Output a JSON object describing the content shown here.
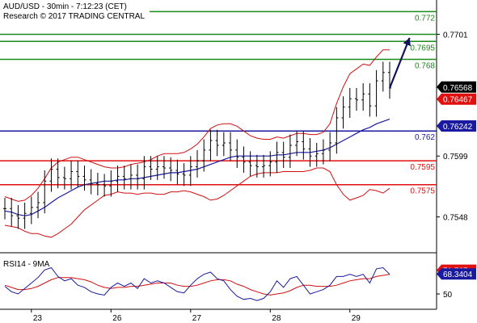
{
  "chart_data": {
    "type": "line",
    "header": {
      "line1": "AUD/USD - 30min - 7:12:23 (CET)",
      "line2": "Research © 2017 TRADING CENTRAL"
    },
    "price_ylim": [
      0.7518,
      0.7727
    ],
    "price_axis_ticks": [
      "0.7701",
      "0.7599",
      "0.7548"
    ],
    "price_axis_tick_values": [
      0.7701,
      0.7599,
      0.7548
    ],
    "levels": [
      {
        "value": 0.772,
        "label": "0.772",
        "color": "#1a8a1a"
      },
      {
        "value": 0.7701,
        "label": "",
        "color": "#1a8a1a"
      },
      {
        "value": 0.7695,
        "label": "0.7695",
        "color": "#1a8a1a"
      },
      {
        "value": 0.768,
        "label": "0.768",
        "color": "#1a8a1a"
      },
      {
        "value": 0.762,
        "label": "0.762",
        "color": "#1a1aa0"
      },
      {
        "value": 0.7595,
        "label": "0.7595",
        "color": "#e01010"
      },
      {
        "value": 0.7575,
        "label": "0.7575",
        "color": "#e01010"
      }
    ],
    "price_badges": [
      {
        "value": 0.76568,
        "label": "0.76568",
        "bg": "#000000",
        "fg": "#ffffff"
      },
      {
        "value": 0.76467,
        "label": "0.76467",
        "bg": "#e01010",
        "fg": "#ffffff"
      },
      {
        "value": 0.76242,
        "label": "0.76242",
        "bg": "#1a1aa0",
        "fg": "#ffffff"
      }
    ],
    "x_ticks": [
      "23",
      "26",
      "27",
      "28",
      "29"
    ],
    "x_tick_index": [
      4,
      16,
      28,
      40,
      52
    ],
    "bars_count": 59,
    "price_series": [
      0.7555,
      0.7549,
      0.7547,
      0.7551,
      0.7556,
      0.756,
      0.7578,
      0.7588,
      0.7581,
      0.758,
      0.7586,
      0.7582,
      0.7579,
      0.7576,
      0.7575,
      0.7574,
      0.7578,
      0.7582,
      0.758,
      0.7583,
      0.758,
      0.759,
      0.7588,
      0.759,
      0.7589,
      0.7587,
      0.7584,
      0.7583,
      0.759,
      0.7595,
      0.7604,
      0.7612,
      0.7608,
      0.761,
      0.7604,
      0.7598,
      0.7594,
      0.7591,
      0.759,
      0.7591,
      0.7594,
      0.7602,
      0.7598,
      0.7608,
      0.7611,
      0.7605,
      0.7599,
      0.7601,
      0.7604,
      0.761,
      0.7631,
      0.764,
      0.7647,
      0.7646,
      0.7651,
      0.7641,
      0.7662,
      0.7669,
      0.7656
    ],
    "sma_series": [
      0.7553,
      0.7552,
      0.755,
      0.7549,
      0.755,
      0.7553,
      0.7556,
      0.756,
      0.7564,
      0.7567,
      0.757,
      0.7573,
      0.7575,
      0.7576,
      0.7577,
      0.7578,
      0.7578,
      0.7579,
      0.7579,
      0.758,
      0.758,
      0.7581,
      0.7582,
      0.7583,
      0.7584,
      0.7585,
      0.7585,
      0.7586,
      0.7587,
      0.7588,
      0.759,
      0.7592,
      0.7594,
      0.7596,
      0.7598,
      0.7599,
      0.7599,
      0.7599,
      0.7599,
      0.7599,
      0.7599,
      0.76,
      0.76,
      0.7601,
      0.7602,
      0.7602,
      0.7602,
      0.7603,
      0.7604,
      0.7606,
      0.7609,
      0.7612,
      0.7615,
      0.7618,
      0.7621,
      0.7623,
      0.7626,
      0.7628,
      0.763
    ],
    "bb_upper": [
      0.7565,
      0.7563,
      0.7561,
      0.7562,
      0.7566,
      0.7572,
      0.758,
      0.7589,
      0.7594,
      0.7596,
      0.7598,
      0.7598,
      0.7596,
      0.7594,
      0.7592,
      0.759,
      0.7589,
      0.7589,
      0.759,
      0.7592,
      0.7593,
      0.7594,
      0.7596,
      0.7599,
      0.7601,
      0.7601,
      0.7601,
      0.7602,
      0.7605,
      0.7609,
      0.7615,
      0.7622,
      0.7625,
      0.7626,
      0.7626,
      0.7624,
      0.762,
      0.7616,
      0.7614,
      0.7613,
      0.7613,
      0.7615,
      0.7614,
      0.7616,
      0.7618,
      0.7618,
      0.7617,
      0.7617,
      0.7619,
      0.7626,
      0.7643,
      0.7657,
      0.7668,
      0.7672,
      0.7676,
      0.7675,
      0.7682,
      0.7688,
      0.7688
    ],
    "bb_lower": [
      0.7541,
      0.754,
      0.7539,
      0.7536,
      0.7534,
      0.7534,
      0.7532,
      0.7531,
      0.7534,
      0.7538,
      0.7542,
      0.7548,
      0.7554,
      0.7558,
      0.7562,
      0.7566,
      0.7567,
      0.7569,
      0.7568,
      0.7568,
      0.7567,
      0.7568,
      0.7568,
      0.7567,
      0.7567,
      0.7569,
      0.7569,
      0.757,
      0.7569,
      0.7567,
      0.7565,
      0.7562,
      0.7563,
      0.7566,
      0.757,
      0.7574,
      0.7578,
      0.7582,
      0.7584,
      0.7585,
      0.7585,
      0.7585,
      0.7586,
      0.7586,
      0.7586,
      0.7586,
      0.7587,
      0.7589,
      0.7589,
      0.7586,
      0.7575,
      0.7567,
      0.7562,
      0.7564,
      0.7566,
      0.7571,
      0.757,
      0.7568,
      0.7572
    ],
    "forecast_arrow": {
      "from": [
        58,
        0.7656
      ],
      "to": [
        61,
        0.7698
      ]
    },
    "rsi": {
      "label": "RSI14 - 9MA",
      "ylim": [
        36,
        84
      ],
      "axis_ticks": [
        "50"
      ],
      "axis_tick_values": [
        50
      ],
      "badges": [
        {
          "value": 71.767,
          "label": "71.767",
          "bg": "#e01010",
          "fg": "#ffffff"
        },
        {
          "value": 68.3404,
          "label": "68.3404",
          "bg": "#1a1aa0",
          "fg": "#ffffff"
        }
      ],
      "rsi_series": [
        57,
        52,
        50,
        55,
        60,
        65,
        72,
        74,
        66,
        62,
        64,
        58,
        56,
        52,
        50,
        49,
        56,
        60,
        57,
        60,
        55,
        64,
        60,
        62,
        60,
        56,
        52,
        51,
        58,
        64,
        68,
        70,
        64,
        62,
        54,
        48,
        45,
        46,
        44,
        46,
        52,
        62,
        56,
        64,
        66,
        58,
        50,
        52,
        54,
        58,
        66,
        66,
        68,
        66,
        68,
        60,
        73,
        74,
        68
      ],
      "ma_series": [
        58,
        56,
        54,
        54,
        55,
        57,
        60,
        63,
        65,
        65,
        65,
        64,
        63,
        61,
        58,
        56,
        55,
        56,
        56,
        57,
        57,
        58,
        59,
        60,
        60,
        60,
        58,
        57,
        57,
        58,
        60,
        62,
        63,
        63,
        62,
        59,
        57,
        54,
        52,
        50,
        49,
        50,
        51,
        53,
        56,
        58,
        58,
        57,
        57,
        57,
        58,
        60,
        62,
        63,
        64,
        64,
        66,
        67,
        68
      ]
    },
    "colors": {
      "price": "#000000",
      "sma": "#1a1aa0",
      "bands": "#d01010",
      "arrow": "#12125a",
      "rsi": "#1a1aa0",
      "rsi_ma": "#d01010"
    }
  }
}
